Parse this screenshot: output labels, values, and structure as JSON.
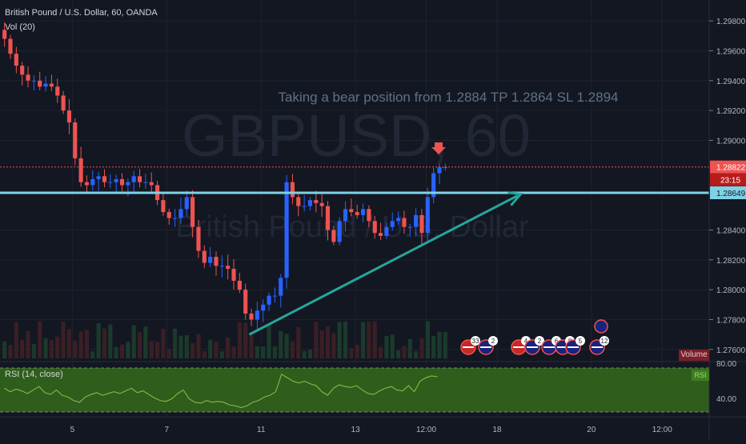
{
  "chart_data": {
    "type": "candlestick",
    "title": "British Pound / U.S. Dollar, 60, OANDA",
    "indicator_volume": "Vol (20)",
    "indicator_rsi": "RSI (14, close)",
    "watermark_symbol": "GBPUSD, 60",
    "watermark_name": "British Pound / U.S. Dollar",
    "annotation": "Taking a bear position from 1.2884 TP 1.2864 SL 1.2894",
    "price_axis_ticks": [
      {
        "label": "1.29800",
        "value": 1.298
      },
      {
        "label": "1.29600",
        "value": 1.296
      },
      {
        "label": "1.29400",
        "value": 1.294
      },
      {
        "label": "1.29200",
        "value": 1.292
      },
      {
        "label": "1.29000",
        "value": 1.29
      },
      {
        "label": "1.28400",
        "value": 1.284
      },
      {
        "label": "1.28200",
        "value": 1.282
      },
      {
        "label": "1.28000",
        "value": 1.28
      },
      {
        "label": "1.27800",
        "value": 1.278
      },
      {
        "label": "1.27600",
        "value": 1.276
      }
    ],
    "price_range": [
      1.2754,
      1.2994
    ],
    "current_price": {
      "label": "1.28822",
      "value": 1.28822,
      "countdown": "23:15"
    },
    "horizontal_level": {
      "label": "1.28649",
      "value": 1.28649
    },
    "trendline": {
      "from": {
        "bar": 42,
        "price": 1.277
      },
      "to": {
        "bar": 88,
        "price": 1.2864
      }
    },
    "x_axis_ticks": [
      {
        "label": "5",
        "bar": 12
      },
      {
        "label": "7",
        "bar": 28
      },
      {
        "label": "11",
        "bar": 44
      },
      {
        "label": "13",
        "bar": 60
      },
      {
        "label": "12:00",
        "bar": 72
      },
      {
        "label": "18",
        "bar": 84
      },
      {
        "label": "20",
        "bar": 100
      },
      {
        "label": "12:00",
        "bar": 112
      }
    ],
    "bar_count_total": 122,
    "closes": [
      1.2968,
      1.2958,
      1.295,
      1.2944,
      1.294,
      1.294,
      1.2936,
      1.2938,
      1.2936,
      1.293,
      1.292,
      1.2912,
      1.2888,
      1.2872,
      1.287,
      1.2874,
      1.2876,
      1.2872,
      1.2872,
      1.2874,
      1.287,
      1.2872,
      1.2876,
      1.2872,
      1.2872,
      1.287,
      1.286,
      1.2852,
      1.2848,
      1.2848,
      1.2854,
      1.2862,
      1.2842,
      1.2826,
      1.2818,
      1.2822,
      1.2816,
      1.2816,
      1.2814,
      1.2806,
      1.28,
      1.2784,
      1.278,
      1.2786,
      1.279,
      1.2796,
      1.2796,
      1.2808,
      1.2872,
      1.2862,
      1.2856,
      1.2856,
      1.286,
      1.2858,
      1.2856,
      1.284,
      1.2832,
      1.2846,
      1.2854,
      1.2852,
      1.285,
      1.2854,
      1.2846,
      1.2838,
      1.2836,
      1.2842,
      1.2846,
      1.2848,
      1.2842,
      1.2842,
      1.285,
      1.2838,
      1.2862,
      1.2878,
      1.2882,
      1.2882
    ],
    "rsi_levels": {
      "upper": "80.00",
      "lower": "40.00"
    },
    "rsi_values": [
      52,
      48,
      51,
      49,
      46,
      50,
      54,
      47,
      45,
      50,
      44,
      42,
      38,
      36,
      42,
      45,
      47,
      44,
      46,
      48,
      46,
      49,
      52,
      47,
      49,
      45,
      41,
      38,
      37,
      40,
      46,
      50,
      40,
      36,
      35,
      38,
      36,
      37,
      36,
      33,
      32,
      30,
      32,
      36,
      38,
      42,
      44,
      48,
      68,
      64,
      60,
      58,
      60,
      57,
      55,
      48,
      44,
      52,
      56,
      54,
      53,
      55,
      50,
      46,
      45,
      49,
      52,
      54,
      50,
      49,
      55,
      48,
      60,
      64,
      66,
      65
    ],
    "volume_labels": [
      "Volume"
    ]
  },
  "events": [
    {
      "icon": "us-flag-icon",
      "count": "33"
    },
    {
      "icon": "uk-flag-icon",
      "count": "2"
    },
    {
      "icon": "us-flag-icon",
      "count": "4"
    },
    {
      "icon": "uk-flag-icon",
      "count": "2"
    },
    {
      "icon": "uk-flag-icon",
      "count": "6"
    },
    {
      "icon": "uk-flag-icon",
      "count": "8"
    },
    {
      "icon": "uk-flag-icon",
      "count": "5"
    },
    {
      "icon": "uk-flag-icon",
      "count": "12"
    }
  ],
  "colors": {
    "background": "#131722",
    "up": "#2962ff",
    "down": "#ef5350",
    "level": "#7fd2e6",
    "trend": "#26a69a",
    "rsi_fill": "#2f5e1c",
    "rsi_line": "#8bc34a"
  }
}
